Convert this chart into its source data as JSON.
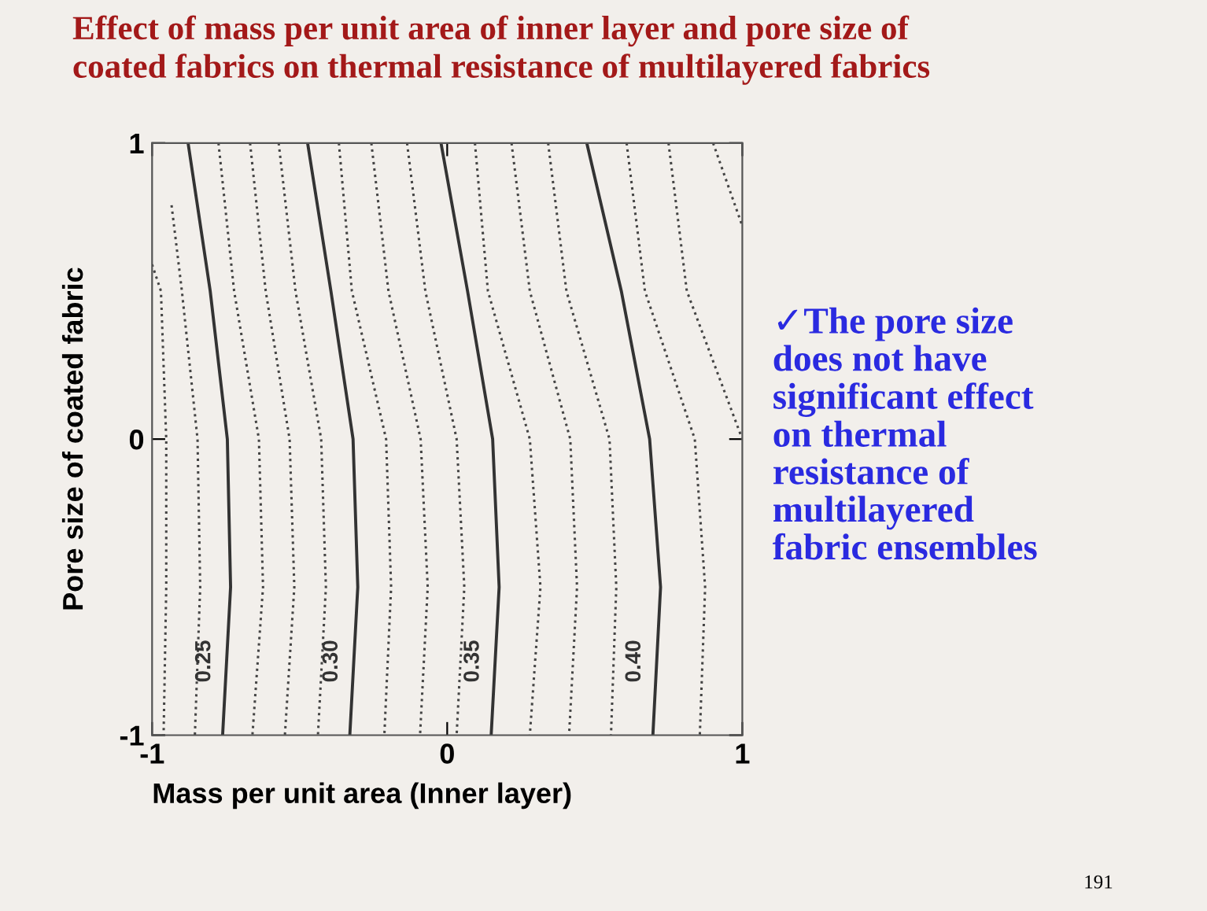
{
  "chart_data": {
    "type": "line",
    "title": "Effect of mass per unit area of inner layer and pore size of\ncoated fabrics on thermal resistance of multilayered fabrics",
    "xlabel": "Mass per unit area (Inner layer)",
    "ylabel": "Pore size of coated fabric",
    "xlim": [
      -1,
      1
    ],
    "ylim": [
      -1,
      1
    ],
    "xticks": [
      -1,
      0,
      1
    ],
    "yticks": [
      -1,
      0,
      1
    ],
    "grid": false,
    "marker": "none",
    "series": [
      {
        "color": "#444444",
        "line_style": "dotted",
        "x": [
          -1.0,
          -0.97,
          -0.952,
          -0.952,
          -0.961
        ],
        "values": [
          0.59,
          0.5,
          0,
          -0.5,
          -1
        ]
      },
      {
        "color": "#444444",
        "line_style": "dotted",
        "x": [
          -0.934,
          -0.899,
          -0.846,
          -0.837,
          -0.855
        ],
        "values": [
          0.79,
          0.5,
          0,
          -0.5,
          -1
        ]
      },
      {
        "name": "0.25",
        "color": "#333333",
        "line_style": "solid",
        "x": [
          -0.878,
          -0.803,
          -0.745,
          -0.734,
          -0.761
        ],
        "values": [
          1,
          0.5,
          0,
          -0.5,
          -1
        ]
      },
      {
        "color": "#444444",
        "line_style": "dotted",
        "x": [
          -0.775,
          -0.722,
          -0.638,
          -0.624,
          -0.66
        ],
        "values": [
          1,
          0.5,
          0,
          -0.5,
          -1
        ]
      },
      {
        "color": "#444444",
        "line_style": "dotted",
        "x": [
          -0.668,
          -0.615,
          -0.534,
          -0.518,
          -0.55
        ],
        "values": [
          1,
          0.5,
          0,
          -0.5,
          -1
        ]
      },
      {
        "color": "#444444",
        "line_style": "dotted",
        "x": [
          -0.571,
          -0.514,
          -0.427,
          -0.411,
          -0.438
        ],
        "values": [
          1,
          0.5,
          0,
          -0.5,
          -1
        ]
      },
      {
        "name": "0.30",
        "color": "#333333",
        "line_style": "solid",
        "x": [
          -0.473,
          -0.394,
          -0.319,
          -0.303,
          -0.33
        ],
        "values": [
          1,
          0.5,
          0,
          -0.5,
          -1
        ]
      },
      {
        "color": "#444444",
        "line_style": "dotted",
        "x": [
          -0.367,
          -0.323,
          -0.207,
          -0.19,
          -0.213
        ],
        "values": [
          1,
          0.5,
          0,
          -0.5,
          -1
        ]
      },
      {
        "color": "#444444",
        "line_style": "dotted",
        "x": [
          -0.257,
          -0.199,
          -0.09,
          -0.066,
          -0.092
        ],
        "values": [
          1,
          0.5,
          0,
          -0.5,
          -1
        ]
      },
      {
        "color": "#444444",
        "line_style": "dotted",
        "x": [
          -0.136,
          -0.074,
          0.032,
          0.058,
          0.032
        ],
        "values": [
          1,
          0.5,
          0,
          -0.5,
          -1
        ]
      },
      {
        "name": "0.35",
        "color": "#333333",
        "line_style": "solid",
        "x": [
          -0.021,
          0.069,
          0.154,
          0.176,
          0.149
        ],
        "values": [
          1,
          0.5,
          0,
          -0.5,
          -1
        ]
      },
      {
        "color": "#444444",
        "line_style": "dotted",
        "x": [
          0.094,
          0.138,
          0.28,
          0.316,
          0.28
        ],
        "values": [
          1,
          0.5,
          0,
          -0.5,
          -1
        ]
      },
      {
        "color": "#444444",
        "line_style": "dotted",
        "x": [
          0.218,
          0.28,
          0.417,
          0.44,
          0.413
        ],
        "values": [
          1,
          0.5,
          0,
          -0.5,
          -1
        ]
      },
      {
        "color": "#444444",
        "line_style": "dotted",
        "x": [
          0.342,
          0.404,
          0.55,
          0.573,
          0.555
        ],
        "values": [
          1,
          0.5,
          0,
          -0.5,
          -1
        ]
      },
      {
        "name": "0.40",
        "color": "#333333",
        "line_style": "solid",
        "x": [
          0.473,
          0.59,
          0.686,
          0.723,
          0.697
        ],
        "values": [
          1,
          0.5,
          0,
          -0.5,
          -1
        ]
      },
      {
        "color": "#444444",
        "line_style": "dotted",
        "x": [
          0.608,
          0.67,
          0.839,
          0.874,
          0.856
        ],
        "values": [
          1,
          0.5,
          0,
          -0.5,
          -1
        ]
      },
      {
        "color": "#444444",
        "line_style": "dotted",
        "x": [
          0.75,
          0.812,
          1.0
        ],
        "values": [
          1,
          0.5,
          0
        ]
      },
      {
        "color": "#444444",
        "line_style": "dotted",
        "x": [
          0.901,
          1.0
        ],
        "values": [
          1,
          0.72
        ]
      }
    ],
    "annotations": [
      "✓The pore size\ndoes not have\nsignificant effect\non thermal\nresistance of\nmultilayered\nfabric ensembles",
      "191"
    ]
  }
}
